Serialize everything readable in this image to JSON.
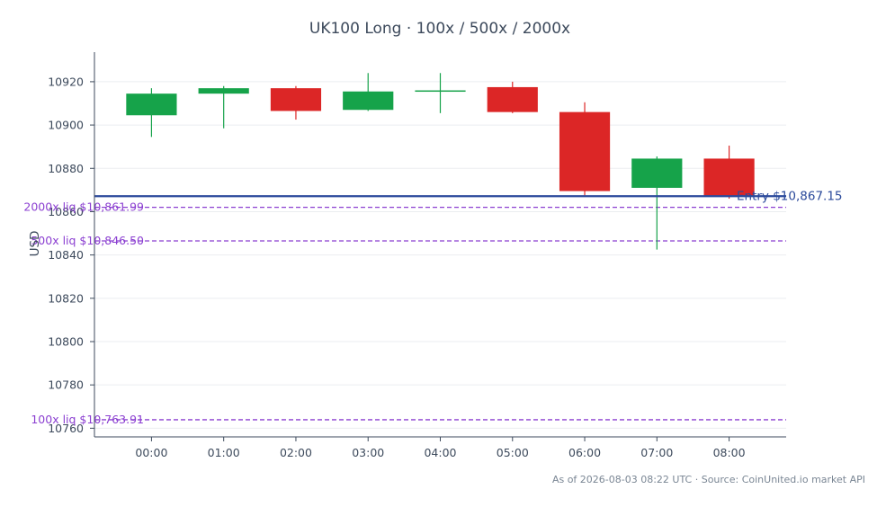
{
  "chart_data": {
    "type": "candlestick",
    "title": "UK100 Long · 100x / 500x / 2000x",
    "ylabel": "USD",
    "xlabel": "",
    "ylim": [
      10756,
      10932
    ],
    "yticks": [
      10760,
      10780,
      10800,
      10820,
      10840,
      10860,
      10880,
      10900,
      10920
    ],
    "grid": true,
    "categories": [
      "00:00",
      "01:00",
      "02:00",
      "03:00",
      "04:00",
      "05:00",
      "06:00",
      "07:00",
      "08:00"
    ],
    "candles": [
      {
        "x": "00:00",
        "open": 10904.5,
        "high": 10917.0,
        "low": 10894.5,
        "close": 10914.5
      },
      {
        "x": "01:00",
        "open": 10914.5,
        "high": 10918.0,
        "low": 10898.5,
        "close": 10917.0
      },
      {
        "x": "02:00",
        "open": 10917.0,
        "high": 10918.0,
        "low": 10902.5,
        "close": 10906.5
      },
      {
        "x": "03:00",
        "open": 10907.0,
        "high": 10924.0,
        "low": 10906.5,
        "close": 10915.5
      },
      {
        "x": "04:00",
        "open": 10916.0,
        "high": 10924.0,
        "low": 10905.5,
        "close": 10916.0
      },
      {
        "x": "05:00",
        "open": 10917.5,
        "high": 10920.0,
        "low": 10905.5,
        "close": 10906.0
      },
      {
        "x": "06:00",
        "open": 10906.0,
        "high": 10910.5,
        "low": 10867.5,
        "close": 10869.5
      },
      {
        "x": "07:00",
        "open": 10871.0,
        "high": 10885.5,
        "low": 10842.5,
        "close": 10884.5
      },
      {
        "x": "08:00",
        "open": 10884.5,
        "high": 10890.5,
        "low": 10866.0,
        "close": 10867.0
      }
    ],
    "entry": {
      "value": 10867.15,
      "label": "Entry $10,867.15",
      "color": "#2b4a9b"
    },
    "liquidation_lines": [
      {
        "value": 10861.99,
        "label": "2000x liq $10,861.99"
      },
      {
        "value": 10846.5,
        "label": "500x liq $10,846.50"
      },
      {
        "value": 10763.91,
        "label": "100x liq $10,763.91"
      }
    ],
    "colors": {
      "up": "#16a34a",
      "down": "#dc2626",
      "liq": "#8b3fd1",
      "axis": "#3d4a5c",
      "grid": "#ebedf0"
    },
    "footer": "As of 2026-08-03 08:22 UTC · Source: CoinUnited.io market API"
  }
}
